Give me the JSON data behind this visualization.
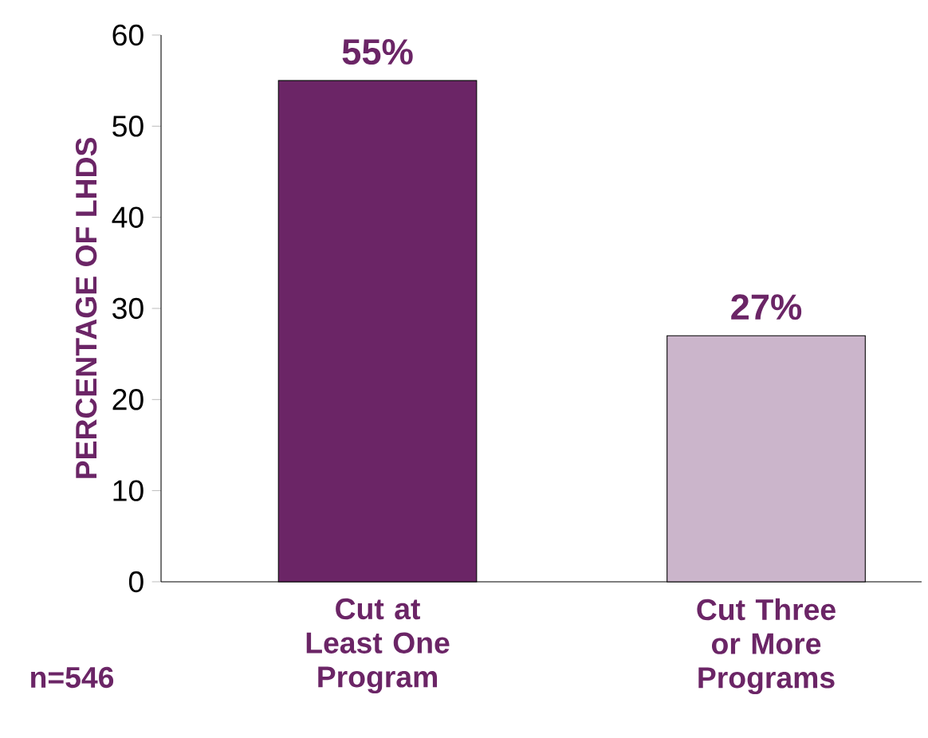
{
  "chart_data": {
    "type": "bar",
    "ylabel": "PERCENTAGE OF LHDS",
    "categories": [
      "Cut at Least One Program",
      "Cut Three or More Programs"
    ],
    "values": [
      55,
      27
    ],
    "colors": [
      "#6b2566",
      "#cbb5cb"
    ],
    "value_labels": [
      "55%",
      "27%"
    ],
    "ylim": [
      0,
      60
    ],
    "yticks": [
      0,
      10,
      20,
      30,
      40,
      50,
      60
    ],
    "grid": false,
    "annotations": [
      "n=546"
    ]
  }
}
